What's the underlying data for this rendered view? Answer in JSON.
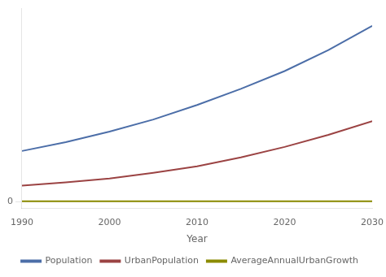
{
  "chart_data": {
    "type": "line",
    "x": [
      1990,
      1995,
      2000,
      2005,
      2010,
      2015,
      2020,
      2025,
      2030
    ],
    "series": [
      {
        "name": "Population",
        "color": "#4C6EA8",
        "values": [
          0.63,
          0.74,
          0.87,
          1.02,
          1.2,
          1.4,
          1.62,
          1.88,
          2.18
        ]
      },
      {
        "name": "UrbanPopulation",
        "color": "#9B4343",
        "values": [
          0.2,
          0.24,
          0.29,
          0.36,
          0.44,
          0.55,
          0.68,
          0.83,
          1.0
        ]
      },
      {
        "name": "AverageAnnualUrbanGrowth",
        "color": "#8B8B00",
        "values": [
          0.008,
          0.008,
          0.008,
          0.008,
          0.008,
          0.008,
          0.008,
          0.008,
          0.008
        ]
      }
    ],
    "xlabel": "Year",
    "xlim": [
      1990,
      2030
    ],
    "xticks": [
      1990,
      2000,
      2010,
      2020,
      2030
    ],
    "ylim": [
      -0.08,
      2.4
    ],
    "yticks": [
      0
    ],
    "grid": true,
    "legend": "bottom"
  }
}
